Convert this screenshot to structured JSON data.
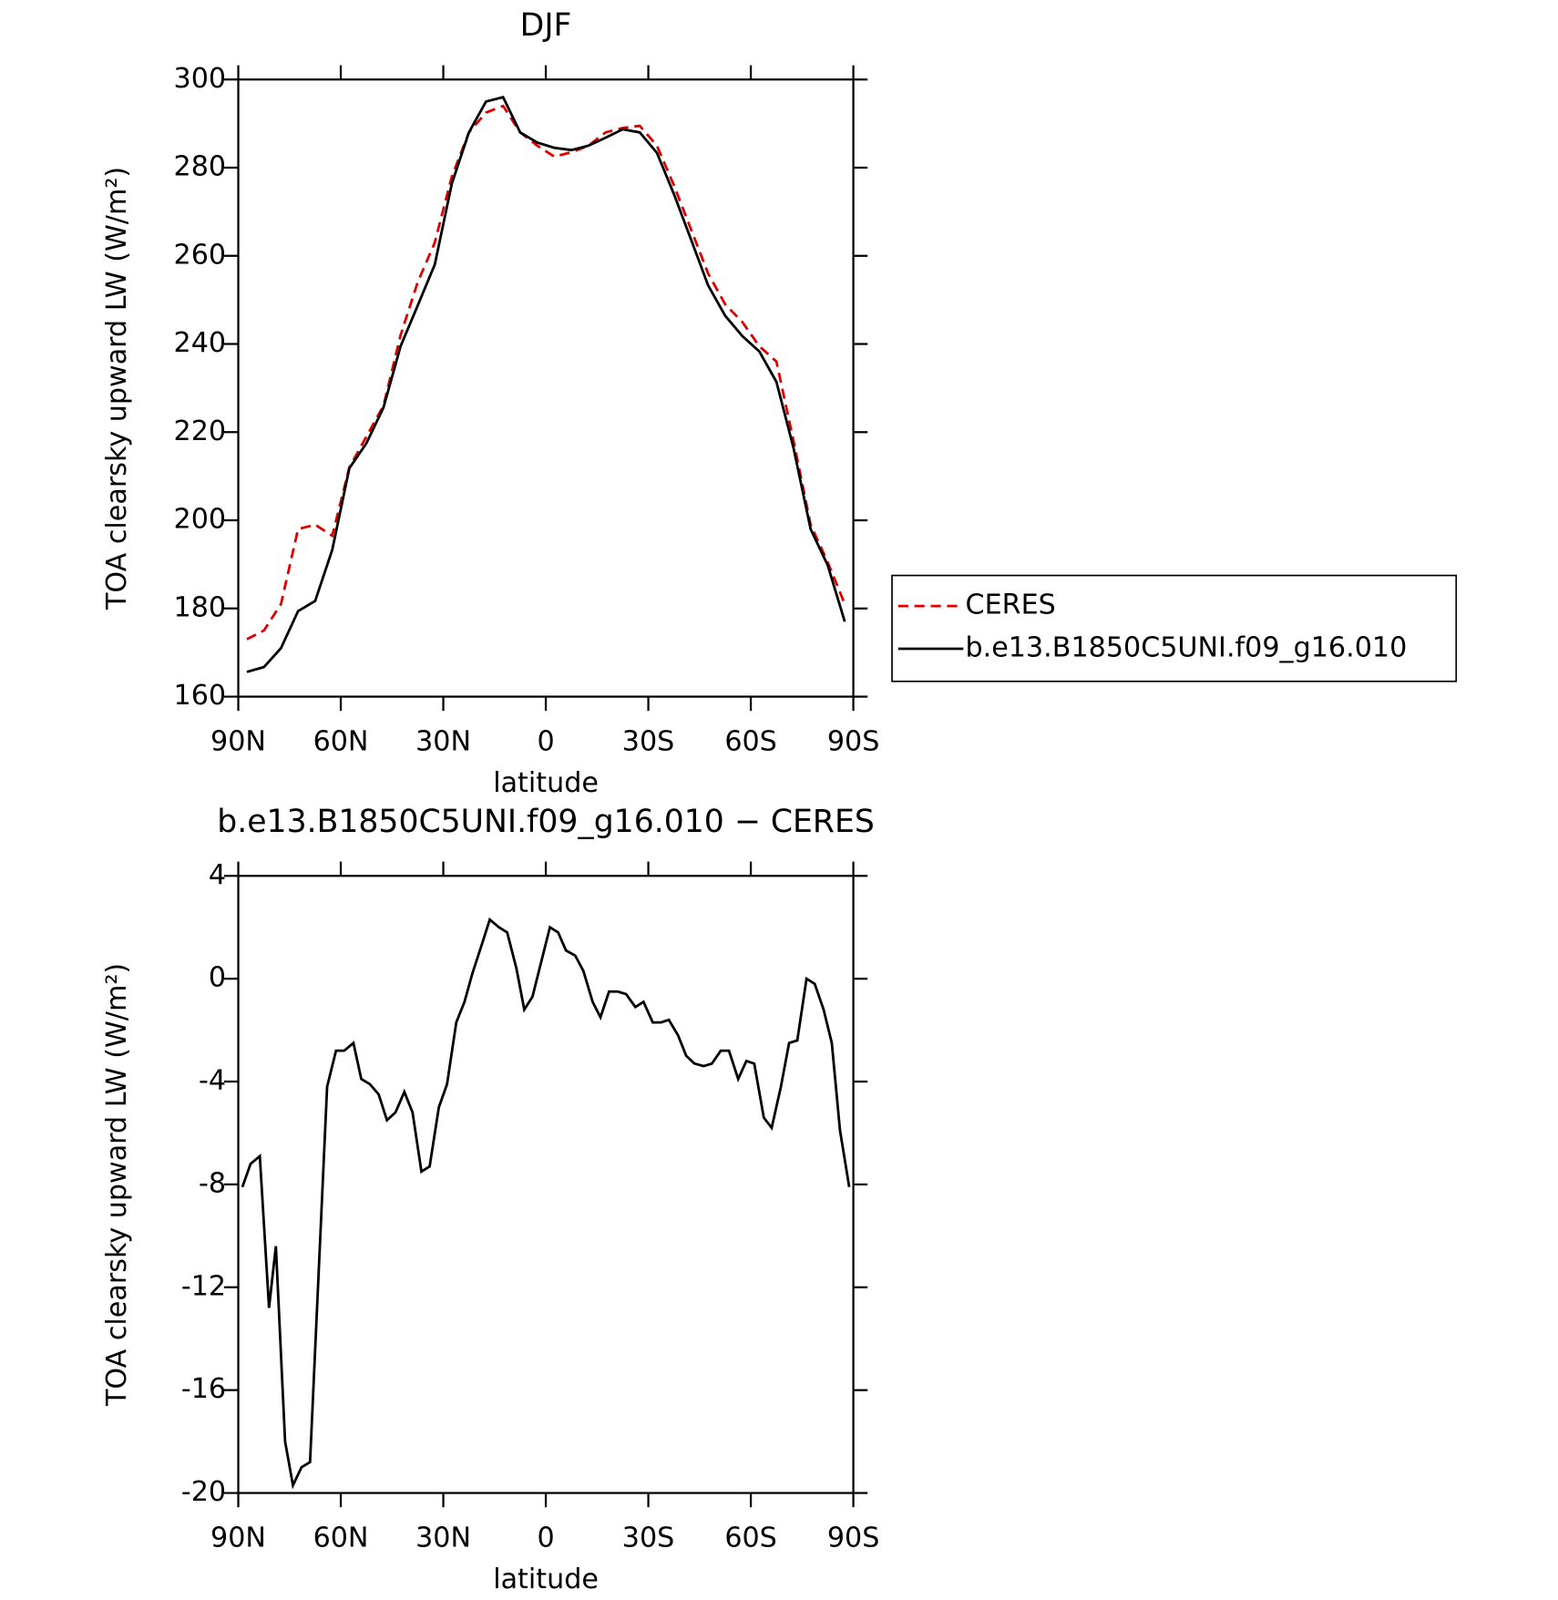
{
  "chart_data": [
    {
      "type": "line",
      "title": "DJF",
      "x_label": "latitude",
      "y_label": "TOA clearsky upward LW (W/m²)",
      "x": [
        87.5,
        82.5,
        77.5,
        72.5,
        67.5,
        62.5,
        57.5,
        52.5,
        47.5,
        42.5,
        37.5,
        32.5,
        27.5,
        22.5,
        17.5,
        12.5,
        7.5,
        2.5,
        -2.5,
        -7.5,
        -12.5,
        -17.5,
        -22.5,
        -27.5,
        -32.5,
        -37.5,
        -42.5,
        -47.5,
        -52.5,
        -57.5,
        -62.5,
        -67.5,
        -72.5,
        -77.5,
        -82.5,
        -87.5
      ],
      "series": [
        {
          "name": "CERES",
          "color": "#e00000",
          "line_style": "dashed",
          "values": [
            173,
            175,
            181,
            198,
            199,
            196.5,
            212,
            219,
            226,
            242,
            254,
            263,
            278,
            288,
            292.5,
            294,
            288,
            285,
            282.5,
            283.5,
            285,
            288,
            289,
            289.5,
            285,
            276,
            266,
            256,
            249,
            245,
            239.5,
            236,
            218,
            199,
            190.5,
            181
          ]
        },
        {
          "name": "b.e13.B1850C5UNI.f09_g16.010",
          "color": "#000000",
          "line_style": "solid",
          "values": [
            165.6,
            166.7,
            171,
            179.4,
            181.7,
            193.3,
            211.8,
            217.5,
            225.6,
            239.5,
            248.7,
            258,
            276.4,
            288,
            295,
            296,
            288,
            285.7,
            284.5,
            284,
            285,
            286.8,
            288.7,
            288,
            283.4,
            274,
            263.7,
            253.3,
            246.4,
            241.8,
            238.3,
            231.4,
            216.4,
            198,
            189.8,
            177
          ]
        }
      ],
      "xlim": [
        90,
        -90
      ],
      "xticks": [
        {
          "value": 90,
          "label": "90N"
        },
        {
          "value": 60,
          "label": "60N"
        },
        {
          "value": 30,
          "label": "30N"
        },
        0,
        {
          "value": -30,
          "label": "30S"
        },
        {
          "value": -60,
          "label": "60S"
        },
        {
          "value": -90,
          "label": "90S"
        }
      ],
      "ylim": [
        160,
        300
      ],
      "yticks": [
        160,
        180,
        200,
        220,
        240,
        260,
        280,
        300
      ],
      "legend": "right"
    },
    {
      "type": "line",
      "title": "b.e13.B1850C5UNI.f09_g16.010 − CERES",
      "x_label": "latitude",
      "y_label": "TOA clearsky upward LW (W/m²)",
      "x": [
        88.8,
        86.4,
        83.7,
        81,
        79,
        76.3,
        74,
        71.5,
        69,
        64,
        61.4,
        59,
        56.3,
        54,
        51.5,
        48.9,
        46.5,
        44,
        41.4,
        39,
        36.4,
        34,
        31.3,
        28.9,
        26.2,
        23.8,
        21.5,
        18.8,
        16.4,
        13.7,
        11.3,
        8.6,
        6.3,
        3.9,
        -1.2,
        -3.6,
        -5.9,
        -8.6,
        -11,
        -13.7,
        -16,
        -18.5,
        -21.1,
        -23.5,
        -26.2,
        -28.6,
        -31.3,
        -33.7,
        -36,
        -38.7,
        -41.1,
        -43.5,
        -46.2,
        -48.6,
        -51.2,
        -53.6,
        -56.3,
        -58.7,
        -61,
        -63.8,
        -66.1,
        -68.8,
        -71.2,
        -73.6,
        -76.3,
        -78.7,
        -81.3,
        -83.7,
        -86.1,
        -88.8
      ],
      "series": [
        {
          "name": "b.e13.B1850C5UNI.f09_g16.010 − CERES",
          "color": "#000000",
          "line_style": "solid",
          "values": [
            -8.1,
            -7.2,
            -6.9,
            -12.8,
            -10.4,
            -18,
            -19.7,
            -19,
            -18.8,
            -4.2,
            -2.8,
            -2.8,
            -2.5,
            -3.9,
            -4.1,
            -4.5,
            -5.5,
            -5.2,
            -4.4,
            -5.2,
            -7.5,
            -7.3,
            -5,
            -4.1,
            -1.7,
            -0.9,
            0.2,
            1.3,
            2.3,
            2,
            1.8,
            0.4,
            -1.2,
            -0.7,
            2,
            1.8,
            1.1,
            0.9,
            0.3,
            -0.9,
            -1.5,
            -0.5,
            -0.5,
            -0.6,
            -1.1,
            -0.9,
            -1.7,
            -1.7,
            -1.6,
            -2.2,
            -3,
            -3.3,
            -3.4,
            -3.3,
            -2.8,
            -2.8,
            -3.9,
            -3.2,
            -3.3,
            -5.4,
            -5.8,
            -4.2,
            -2.5,
            -2.4,
            0,
            -0.2,
            -1.2,
            -2.5,
            -5.9,
            -8.1
          ]
        }
      ],
      "xlim": [
        90,
        -90
      ],
      "xticks": [
        {
          "value": 90,
          "label": "90N"
        },
        {
          "value": 60,
          "label": "60N"
        },
        {
          "value": 30,
          "label": "30N"
        },
        0,
        {
          "value": -30,
          "label": "30S"
        },
        {
          "value": -60,
          "label": "60S"
        },
        {
          "value": -90,
          "label": "90S"
        }
      ],
      "ylim": [
        -20,
        4
      ],
      "yticks": [
        -20,
        -16,
        -12,
        -8,
        -4,
        0,
        4
      ]
    }
  ]
}
